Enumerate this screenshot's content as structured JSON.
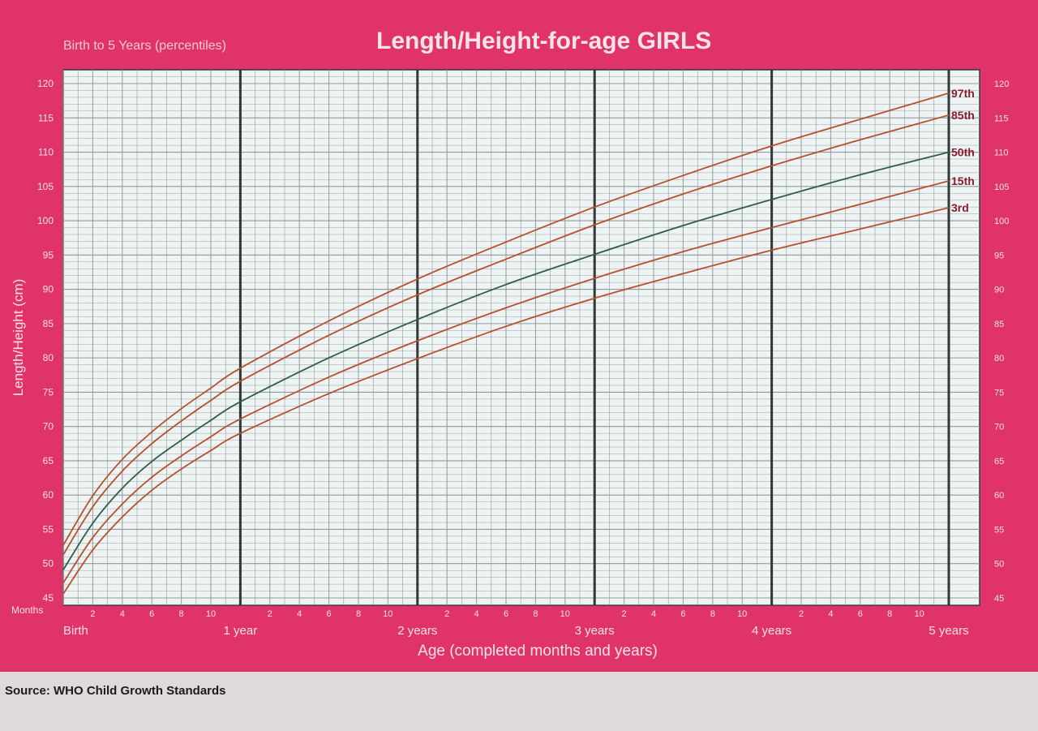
{
  "header": {
    "subtitle": "Birth to 5 Years (percentiles)",
    "title": "Length/Height-for-age GIRLS"
  },
  "footer": {
    "source": "Source: WHO Child Growth Standards"
  },
  "colors": {
    "card": "#e0336a",
    "plot_background": "#eef3f3",
    "grid_minor": "#8f9a9a",
    "grid_major": "#2f3a36",
    "curve_green": "#2e5e4a",
    "curve_red": "#b8502e",
    "label_text": "#fbe1e9",
    "percentile_label": "#8a1d2e"
  },
  "chart_data": {
    "type": "line",
    "title": "Length/Height-for-age GIRLS",
    "subtitle": "Birth to 5 Years (percentiles)",
    "xlabel": "Age (completed months and years)",
    "ylabel": "Length/Height (cm)",
    "xlim": [
      0,
      60
    ],
    "ylim": [
      44,
      121
    ],
    "grid": true,
    "x_unit_label": "Months",
    "x_month_ticks": [
      2,
      4,
      6,
      8,
      10
    ],
    "x_year_labels": [
      "Birth",
      "1 year",
      "2 years",
      "3 years",
      "4 years",
      "5 years"
    ],
    "y_ticks_left": [
      45,
      50,
      55,
      60,
      65,
      70,
      75,
      80,
      85,
      90,
      95,
      100,
      105,
      110,
      115,
      120
    ],
    "y_ticks_right": [
      45,
      50,
      55,
      60,
      65,
      70,
      75,
      80,
      85,
      90,
      95,
      100,
      105,
      110,
      115,
      120
    ],
    "legend_position": "right end of curves",
    "x": [
      0,
      2,
      4,
      6,
      8,
      10,
      12,
      18,
      24,
      30,
      36,
      42,
      48,
      54,
      60
    ],
    "series": [
      {
        "name": "97th",
        "color": "#b8502e",
        "values": [
          52.7,
          59.9,
          65.2,
          69.2,
          72.6,
          75.6,
          78.5,
          85.4,
          91.5,
          96.9,
          102.0,
          106.6,
          110.9,
          114.8,
          118.6
        ]
      },
      {
        "name": "85th",
        "color": "#b8502e",
        "values": [
          51.3,
          58.3,
          63.5,
          67.5,
          70.8,
          73.8,
          76.6,
          83.3,
          89.2,
          94.4,
          99.4,
          103.9,
          108.0,
          111.8,
          115.4
        ]
      },
      {
        "name": "50th",
        "color": "#2e5e4a",
        "values": [
          49.1,
          55.9,
          61.0,
          64.9,
          68.0,
          70.9,
          73.6,
          80.0,
          85.6,
          90.7,
          95.1,
          99.3,
          103.1,
          106.7,
          110.0
        ]
      },
      {
        "name": "15th",
        "color": "#b8502e",
        "values": [
          47.2,
          53.8,
          58.7,
          62.6,
          65.7,
          68.5,
          71.1,
          77.2,
          82.5,
          87.3,
          91.6,
          95.5,
          99.0,
          102.4,
          105.8
        ]
      },
      {
        "name": "3rd",
        "color": "#b8502e",
        "values": [
          45.6,
          52.0,
          56.8,
          60.7,
          63.8,
          66.5,
          69.0,
          74.8,
          79.9,
          84.6,
          88.7,
          92.3,
          95.7,
          98.8,
          101.9
        ]
      }
    ]
  }
}
